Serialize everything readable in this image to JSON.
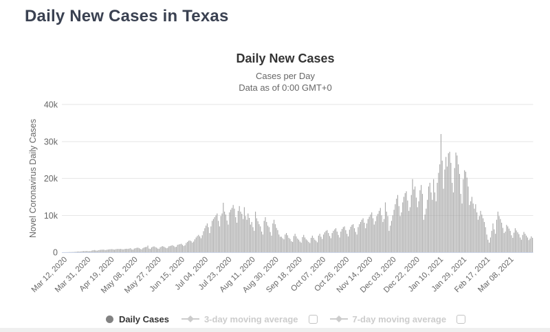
{
  "page": {
    "title": "Daily New Cases in Texas"
  },
  "chart": {
    "title": "Daily New Cases",
    "subtitle1": "Cases per Day",
    "subtitle2": "Data as of 0:00 GMT+0",
    "y_axis_title": "Novel Coronavirus Daily Cases",
    "legend": [
      {
        "label": "Daily Cases",
        "marker": "circle-icon",
        "enabled": true,
        "has_checkbox": false
      },
      {
        "label": "3-day moving average",
        "marker": "line-diamond-icon",
        "enabled": false,
        "has_checkbox": true,
        "checked": false
      },
      {
        "label": "7-day moving average",
        "marker": "line-diamond-icon",
        "enabled": false,
        "has_checkbox": true,
        "checked": false
      }
    ],
    "colors": {
      "page_title": "#3a4151",
      "chart_title": "#333333",
      "subtitle": "#666666",
      "axis_text": "#666666",
      "bar": "#a7a7a7",
      "gridline": "#e6e6e6",
      "axis_line": "#ccd6eb",
      "legend_enabled_text": "#333333",
      "legend_disabled": "#cccccc",
      "legend_circle_marker": "#828282"
    }
  },
  "chart_data": {
    "type": "bar",
    "title": "Daily New Cases",
    "subtitle": [
      "Cases per Day",
      "Data as of 0:00 GMT+0"
    ],
    "xlabel": "",
    "ylabel": "Novel Coronavirus Daily Cases",
    "ylim": [
      0,
      40000
    ],
    "y_ticks": [
      {
        "value": 0,
        "label": "0"
      },
      {
        "value": 10000,
        "label": "10k"
      },
      {
        "value": 20000,
        "label": "20k"
      },
      {
        "value": 30000,
        "label": "30k"
      },
      {
        "value": 40000,
        "label": "40k"
      }
    ],
    "grid": true,
    "legend_position": "bottom",
    "start_date": "Mar 08, 2020",
    "end_date": "Mar 23, 2021",
    "x_ticks": [
      {
        "day_index": 4,
        "label": "Mar 12, 2020"
      },
      {
        "day_index": 23,
        "label": "Mar 31, 2020"
      },
      {
        "day_index": 42,
        "label": "Apr 19, 2020"
      },
      {
        "day_index": 61,
        "label": "May 08, 2020"
      },
      {
        "day_index": 80,
        "label": "May 27, 2020"
      },
      {
        "day_index": 99,
        "label": "Jun 15, 2020"
      },
      {
        "day_index": 118,
        "label": "Jul 04, 2020"
      },
      {
        "day_index": 137,
        "label": "Jul 23, 2020"
      },
      {
        "day_index": 156,
        "label": "Aug 11, 2020"
      },
      {
        "day_index": 175,
        "label": "Aug 30, 2020"
      },
      {
        "day_index": 194,
        "label": "Sep 18, 2020"
      },
      {
        "day_index": 213,
        "label": "Oct 07, 2020"
      },
      {
        "day_index": 232,
        "label": "Oct 26, 2020"
      },
      {
        "day_index": 251,
        "label": "Nov 14, 2020"
      },
      {
        "day_index": 270,
        "label": "Dec 03, 2020"
      },
      {
        "day_index": 289,
        "label": "Dec 22, 2020"
      },
      {
        "day_index": 308,
        "label": "Jan 10, 2021"
      },
      {
        "day_index": 327,
        "label": "Jan 29, 2021"
      },
      {
        "day_index": 346,
        "label": "Feb 17, 2021"
      },
      {
        "day_index": 365,
        "label": "Mar 08, 2021"
      }
    ],
    "series": [
      {
        "name": "Daily Cases",
        "values": [
          8,
          12,
          16,
          22,
          30,
          45,
          60,
          55,
          70,
          85,
          110,
          140,
          180,
          210,
          190,
          230,
          280,
          320,
          310,
          340,
          360,
          280,
          300,
          330,
          500,
          550,
          600,
          480,
          420,
          560,
          620,
          680,
          700,
          720,
          650,
          580,
          700,
          750,
          800,
          820,
          850,
          780,
          700,
          820,
          880,
          900,
          870,
          910,
          850,
          760,
          870,
          920,
          950,
          900,
          1000,
          1100,
          800,
          700,
          1000,
          1100,
          1200,
          1250,
          1100,
          900,
          800,
          1100,
          1300,
          1400,
          1450,
          1800,
          1000,
          900,
          1300,
          1500,
          1600,
          1400,
          1250,
          1000,
          950,
          1350,
          1550,
          1650,
          1500,
          1300,
          1100,
          1200,
          1600,
          1700,
          1800,
          1900,
          1700,
          1400,
          1500,
          2000,
          2100,
          2200,
          2300,
          2000,
          1700,
          1900,
          2500,
          2800,
          3100,
          3200,
          3000,
          2600,
          2900,
          3500,
          4000,
          4400,
          4700,
          4300,
          3800,
          4600,
          5700,
          6500,
          7200,
          7800,
          6800,
          5200,
          7000,
          8500,
          9000,
          9500,
          10000,
          10500,
          8500,
          7000,
          9800,
          10500,
          13400,
          11000,
          10200,
          8600,
          7500,
          10800,
          11500,
          12000,
          12800,
          11800,
          9500,
          8000,
          11200,
          12500,
          11000,
          10400,
          9000,
          12200,
          9800,
          8800,
          10500,
          9300,
          7500,
          8200,
          6800,
          5800,
          11000,
          9200,
          8400,
          7600,
          7000,
          5600,
          4800,
          8500,
          9500,
          8200,
          7200,
          6800,
          5500,
          4500,
          7800,
          8800,
          7600,
          6600,
          6000,
          4800,
          4200,
          4200,
          3800,
          3500,
          4800,
          5200,
          4600,
          3900,
          3600,
          3000,
          2800,
          4400,
          5000,
          4300,
          3700,
          3400,
          2900,
          2600,
          4100,
          4700,
          4000,
          3500,
          3200,
          2800,
          2500,
          3900,
          4500,
          3900,
          3400,
          3100,
          2700,
          4500,
          5000,
          4200,
          3600,
          4800,
          5400,
          5800,
          6000,
          5200,
          4400,
          3800,
          5200,
          5800,
          6200,
          6500,
          5600,
          4700,
          4000,
          5600,
          6300,
          6800,
          7000,
          6000,
          5000,
          4300,
          6100,
          6900,
          7400,
          7600,
          6500,
          5500,
          4800,
          6800,
          7600,
          8200,
          8800,
          9200,
          8000,
          6500,
          7800,
          9000,
          9600,
          10200,
          10800,
          9200,
          7500,
          8400,
          9800,
          10400,
          11200,
          12000,
          10000,
          8200,
          9000,
          13500,
          11000,
          9800,
          5800,
          7200,
          8500,
          10000,
          11500,
          13000,
          14500,
          15500,
          12500,
          9800,
          10800,
          13500,
          15000,
          16000,
          16500,
          14000,
          11200,
          12200,
          15500,
          19800,
          17000,
          17800,
          14800,
          12200,
          13800,
          16800,
          18200,
          15800,
          8800,
          10200,
          11800,
          14200,
          17800,
          18800,
          16200,
          14200,
          19800,
          16200,
          13800,
          18800,
          21500,
          23800,
          32000,
          24800,
          17200,
          22400,
          25800,
          23200,
          26800,
          27200,
          24200,
          18800,
          16200,
          22800,
          27000,
          26200,
          23800,
          21200,
          15800,
          13200,
          19800,
          22200,
          21800,
          20200,
          17800,
          12800,
          13800,
          15000,
          13200,
          11800,
          13000,
          10800,
          8800,
          9800,
          11200,
          10200,
          9200,
          8200,
          6800,
          4800,
          3400,
          2600,
          4000,
          5800,
          7800,
          6200,
          5000,
          8800,
          11000,
          9800,
          9000,
          8000,
          6600,
          5200,
          5600,
          7400,
          7000,
          6400,
          5800,
          4600,
          3900,
          5300,
          6500,
          5900,
          5400,
          4900,
          4000,
          3400,
          4700,
          5500,
          5000,
          4500,
          4000,
          3300,
          3700,
          4300,
          3900
        ]
      }
    ]
  }
}
